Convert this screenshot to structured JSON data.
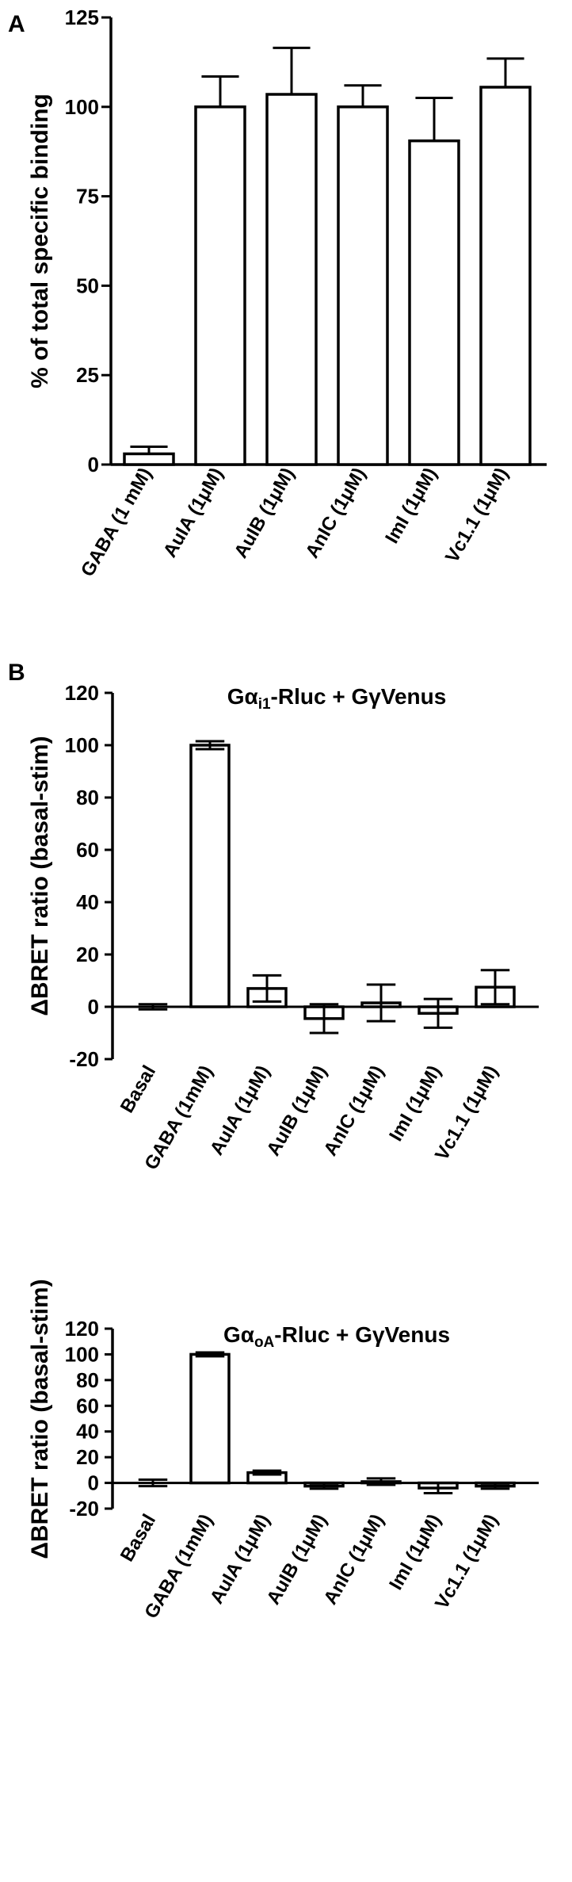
{
  "chart_data": [
    {
      "panel": "A",
      "type": "bar",
      "title": "",
      "xlabel": "",
      "ylabel": "% of total specific binding",
      "ylim": [
        0,
        125
      ],
      "yticks": [
        "0",
        "25",
        "50",
        "75",
        "100",
        "125"
      ],
      "categories": [
        "GABA (1 mM)",
        "AuIA (1μM)",
        "AuIB (1μM)",
        "AnIC (1μM)",
        "ImI (1μM)",
        "Vc1.1 (1μM)"
      ],
      "values": [
        3,
        100,
        103.5,
        100,
        90.5,
        105.5
      ],
      "errors": [
        2,
        8.5,
        13,
        6,
        12,
        8
      ],
      "error_style": "upper"
    },
    {
      "panel": "B",
      "type": "bar",
      "title_main": "Gα",
      "title_sub": "i1",
      "title_rest": "-Rluc + GγVenus",
      "xlabel": "",
      "ylabel": "ΔBRET ratio (basal-stim)",
      "ylim": [
        -20,
        120
      ],
      "yticks": [
        "-20",
        "0",
        "20",
        "40",
        "60",
        "80",
        "100",
        "120"
      ],
      "categories": [
        "Basal",
        "GABA (1mM)",
        "AuIA (1μM)",
        "AuIB (1μM)",
        "AnIC (1μM)",
        "ImI (1μM)",
        "Vc1.1 (1μM)"
      ],
      "values": [
        0,
        100,
        7,
        -4.5,
        1.5,
        -2.5,
        7.5
      ],
      "errors": [
        1,
        1.5,
        5,
        5.5,
        7,
        5.5,
        6.5
      ],
      "error_style": "both"
    },
    {
      "panel": "",
      "type": "bar",
      "title_main": "Gα",
      "title_sub": "oA",
      "title_rest": "-Rluc + GγVenus",
      "xlabel": "",
      "ylabel": "ΔBRET ratio (basal-stim)",
      "ylim": [
        -20,
        120
      ],
      "yticks": [
        "-20",
        "0",
        "20",
        "40",
        "60",
        "80",
        "100",
        "120"
      ],
      "categories": [
        "Basal",
        "GABA (1mM)",
        "AuIA (1μM)",
        "AuIB (1μM)",
        "AnIC (1μM)",
        "ImI (1μM)",
        "Vc1.1 (1μM)"
      ],
      "values": [
        0,
        100,
        8,
        -2.5,
        1,
        -4,
        -2.5
      ],
      "errors": [
        2.5,
        1.5,
        1.5,
        2,
        2.5,
        4,
        2
      ],
      "error_style": "both"
    }
  ]
}
